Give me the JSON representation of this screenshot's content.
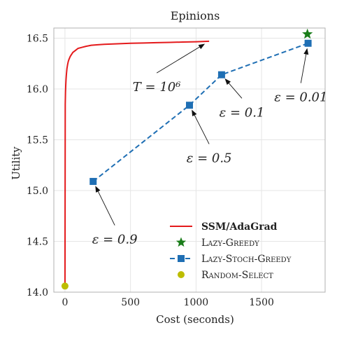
{
  "chart_data": {
    "type": "line",
    "title": "Epinions",
    "xlabel": "Cost (seconds)",
    "ylabel": "Utility",
    "xlim": [
      -85,
      1985
    ],
    "ylim": [
      14.0,
      16.6
    ],
    "xticks": [
      0,
      500,
      1000,
      1500
    ],
    "yticks": [
      14.0,
      14.5,
      15.0,
      15.5,
      16.0,
      16.5
    ],
    "grid": true,
    "legend_position": "lower-right",
    "series": [
      {
        "name": "SSM/AdaGrad",
        "style": "solid-line",
        "color": "#e41a1c",
        "x": [
          0,
          2,
          4,
          6,
          8,
          10,
          12,
          15,
          20,
          25,
          30,
          40,
          50,
          60,
          80,
          100,
          130,
          160,
          200,
          250,
          300,
          400,
          500,
          600,
          700,
          800,
          900,
          1000,
          1100
        ],
        "y": [
          14.05,
          15.85,
          15.97,
          16.04,
          16.09,
          16.13,
          16.16,
          16.2,
          16.24,
          16.27,
          16.29,
          16.32,
          16.34,
          16.36,
          16.38,
          16.4,
          16.41,
          16.42,
          16.43,
          16.435,
          16.44,
          16.445,
          16.45,
          16.453,
          16.456,
          16.459,
          16.462,
          16.465,
          16.47
        ]
      },
      {
        "name": "Lazy-Greedy",
        "style": "star-marker",
        "color": "#1a7d1a",
        "x": [
          1850
        ],
        "y": [
          16.54
        ]
      },
      {
        "name": "Lazy-Stoch-Greedy",
        "style": "dashed-line-square-markers",
        "color": "#1f6fb4",
        "x": [
          215,
          950,
          1195,
          1855
        ],
        "y": [
          15.09,
          15.84,
          16.14,
          16.45
        ]
      },
      {
        "name": "Random-Select",
        "style": "circle-marker",
        "color": "#bdbd00",
        "x": [
          0
        ],
        "y": [
          14.06
        ]
      }
    ],
    "annotations": [
      {
        "text": "T = 10⁶",
        "target": [
          1100,
          16.47
        ],
        "text_at": [
          700,
          16.02
        ],
        "text_anchor": "middle"
      },
      {
        "text": "ε = 0.01",
        "target": [
          1855,
          16.45
        ],
        "text_at": [
          1800,
          15.92
        ],
        "text_anchor": "middle"
      },
      {
        "text": "ε = 0.1",
        "target": [
          1195,
          16.14
        ],
        "text_at": [
          1350,
          15.77
        ],
        "text_anchor": "middle"
      },
      {
        "text": "ε = 0.5",
        "target": [
          950,
          15.84
        ],
        "text_at": [
          1100,
          15.32
        ],
        "text_anchor": "middle"
      },
      {
        "text": "ε = 0.9",
        "target": [
          215,
          15.09
        ],
        "text_at": [
          380,
          14.52
        ],
        "text_anchor": "middle"
      }
    ]
  }
}
